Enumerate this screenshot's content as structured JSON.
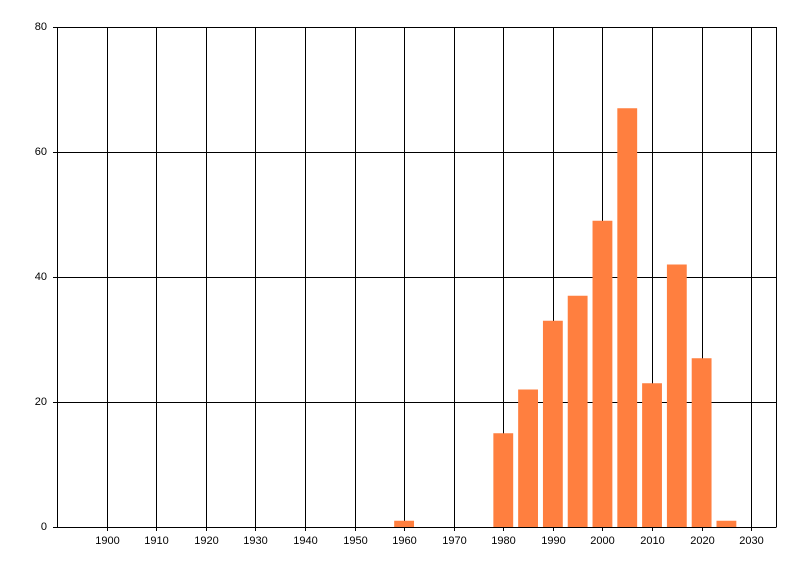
{
  "chart_data": {
    "type": "bar",
    "x": [
      1960,
      1980,
      1985,
      1990,
      1995,
      2000,
      2005,
      2010,
      2015,
      2020,
      2025
    ],
    "values": [
      1,
      15,
      22,
      33,
      37,
      49,
      67,
      23,
      42,
      27,
      1
    ],
    "color": "#ff7f3f",
    "xlim": [
      1890,
      2035
    ],
    "xticks": [
      1900,
      1910,
      1920,
      1930,
      1940,
      1950,
      1960,
      1970,
      1980,
      1990,
      2000,
      2010,
      2020,
      2030
    ],
    "ylim": [
      0,
      80
    ],
    "yticks": [
      0,
      20,
      40,
      60,
      80
    ],
    "grid": true
  }
}
